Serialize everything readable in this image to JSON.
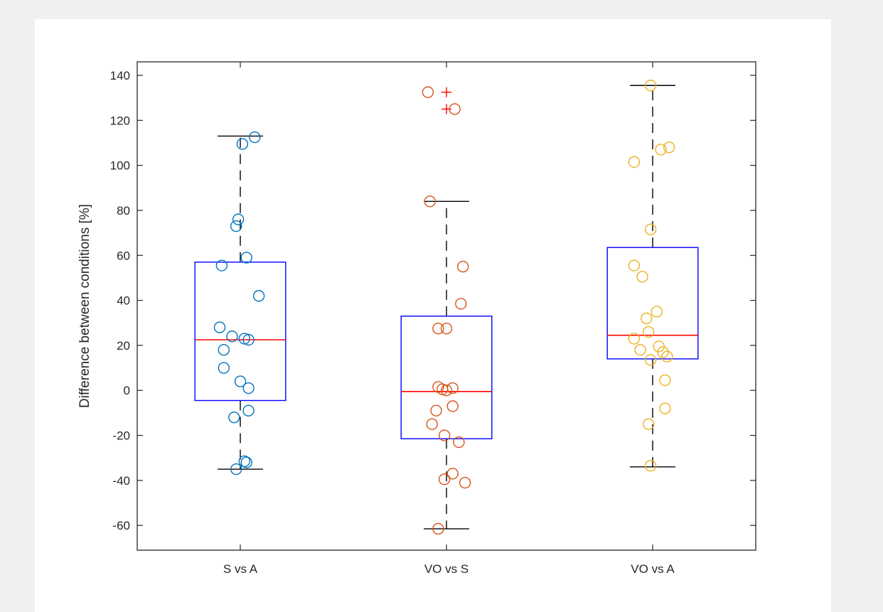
{
  "chart_data": {
    "type": "boxplot",
    "title": "",
    "xlabel": "",
    "ylabel": "Difference between conditions [%]",
    "ylim": [
      -71,
      146
    ],
    "yticks": [
      -60,
      -40,
      -20,
      0,
      20,
      40,
      60,
      80,
      100,
      120,
      140
    ],
    "ytick_labels": [
      "-60",
      "-40",
      "-20",
      "0",
      "20",
      "40",
      "60",
      "80",
      "100",
      "120",
      "140"
    ],
    "categories": [
      "S vs A",
      "VO vs S",
      "VO vs A"
    ],
    "grid": false,
    "colors": {
      "box": "#0000ff",
      "median": "#ff0000",
      "whisker": "#000000",
      "outlier": "#ff0000",
      "axis": "#262626"
    },
    "series": [
      {
        "category": "S vs A",
        "point_color": "#0072bd",
        "box": {
          "q1": -4.5,
          "median": 22.5,
          "q3": 57,
          "whisker_low": -35,
          "whisker_high": 113
        },
        "outliers": [],
        "points": [
          {
            "x": 0.01,
            "y": 109.5
          },
          {
            "x": 0.07,
            "y": 112.5
          },
          {
            "x": -0.01,
            "y": 76
          },
          {
            "x": -0.02,
            "y": 73
          },
          {
            "x": 0.03,
            "y": 59
          },
          {
            "x": -0.09,
            "y": 55.5
          },
          {
            "x": 0.09,
            "y": 42
          },
          {
            "x": -0.1,
            "y": 28
          },
          {
            "x": -0.04,
            "y": 24
          },
          {
            "x": 0.02,
            "y": 23
          },
          {
            "x": 0.04,
            "y": 22.5
          },
          {
            "x": -0.08,
            "y": 18
          },
          {
            "x": -0.08,
            "y": 10
          },
          {
            "x": 0.0,
            "y": 4
          },
          {
            "x": 0.04,
            "y": 1
          },
          {
            "x": 0.04,
            "y": -9
          },
          {
            "x": -0.03,
            "y": -12
          },
          {
            "x": 0.02,
            "y": -31.5
          },
          {
            "x": 0.03,
            "y": -32
          },
          {
            "x": -0.02,
            "y": -35
          }
        ]
      },
      {
        "category": "VO vs S",
        "point_color": "#d95319",
        "box": {
          "q1": -21.5,
          "median": -0.5,
          "q3": 33,
          "whisker_low": -61.5,
          "whisker_high": 84
        },
        "outliers": [
          132.5,
          125
        ],
        "points": [
          {
            "x": -0.09,
            "y": 132.5
          },
          {
            "x": 0.04,
            "y": 125
          },
          {
            "x": -0.08,
            "y": 84
          },
          {
            "x": 0.08,
            "y": 55
          },
          {
            "x": 0.07,
            "y": 38.5
          },
          {
            "x": -0.04,
            "y": 27.5
          },
          {
            "x": 0.0,
            "y": 27.5
          },
          {
            "x": -0.04,
            "y": 1.5
          },
          {
            "x": -0.02,
            "y": 0.5
          },
          {
            "x": 0.0,
            "y": 0
          },
          {
            "x": 0.03,
            "y": 1
          },
          {
            "x": -0.05,
            "y": -9
          },
          {
            "x": 0.03,
            "y": -7
          },
          {
            "x": -0.07,
            "y": -15
          },
          {
            "x": -0.01,
            "y": -20
          },
          {
            "x": 0.06,
            "y": -23
          },
          {
            "x": 0.03,
            "y": -37
          },
          {
            "x": -0.01,
            "y": -39.5
          },
          {
            "x": 0.09,
            "y": -41
          },
          {
            "x": -0.04,
            "y": -61.5
          }
        ]
      },
      {
        "category": "VO vs A",
        "point_color": "#edb120",
        "box": {
          "q1": 14,
          "median": 24.5,
          "q3": 63.5,
          "whisker_low": -34,
          "whisker_high": 135.5
        },
        "outliers": [],
        "points": [
          {
            "x": -0.01,
            "y": 135.5
          },
          {
            "x": 0.08,
            "y": 108
          },
          {
            "x": 0.04,
            "y": 107
          },
          {
            "x": -0.09,
            "y": 101.5
          },
          {
            "x": -0.01,
            "y": 71.5
          },
          {
            "x": -0.09,
            "y": 55.5
          },
          {
            "x": -0.05,
            "y": 50.5
          },
          {
            "x": 0.02,
            "y": 35
          },
          {
            "x": -0.03,
            "y": 32
          },
          {
            "x": -0.02,
            "y": 26
          },
          {
            "x": -0.09,
            "y": 23
          },
          {
            "x": 0.03,
            "y": 19.5
          },
          {
            "x": -0.06,
            "y": 18
          },
          {
            "x": 0.05,
            "y": 17
          },
          {
            "x": 0.07,
            "y": 15
          },
          {
            "x": -0.01,
            "y": 13.5
          },
          {
            "x": 0.06,
            "y": 4.5
          },
          {
            "x": 0.06,
            "y": -8
          },
          {
            "x": -0.02,
            "y": -15
          },
          {
            "x": -0.01,
            "y": -33.5
          }
        ]
      }
    ]
  }
}
